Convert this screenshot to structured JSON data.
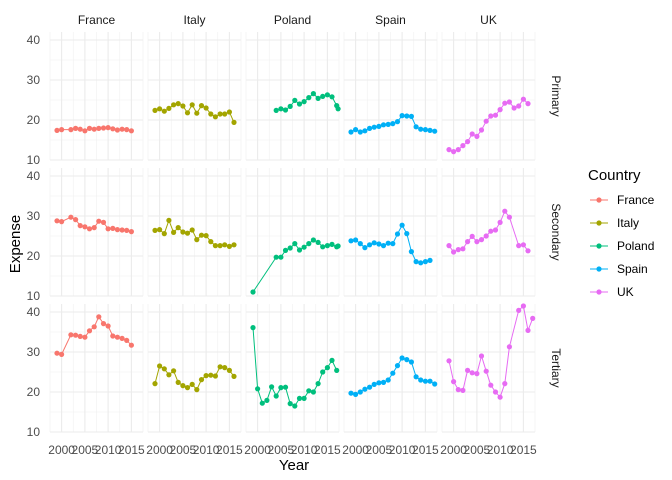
{
  "chart_data": {
    "type": "line",
    "facet": "grid",
    "xlabel": "Year",
    "ylabel": "Expense",
    "xlim": [
      1997.5,
      2017.5
    ],
    "ylim": [
      10,
      42
    ],
    "x_ticks": [
      2000,
      2005,
      2010,
      2015
    ],
    "x_tick_labels": [
      "2000",
      "2005",
      "2010",
      "2015"
    ],
    "y_ticks": [
      10,
      20,
      30,
      40
    ],
    "grid": true,
    "legend": {
      "title": "Country",
      "position": "right"
    },
    "columns": [
      "France",
      "Italy",
      "Poland",
      "Spain",
      "UK"
    ],
    "rows": [
      "Primary",
      "Secondary",
      "Tertiary"
    ],
    "colors": {
      "France": "#F8766D",
      "Italy": "#A3A500",
      "Poland": "#00BF7D",
      "Spain": "#00B0F6",
      "UK": "#E76BF3"
    },
    "series": [
      {
        "country": "France",
        "level": "Primary",
        "points": [
          [
            1999,
            17.4
          ],
          [
            2000,
            17.6
          ],
          [
            2002,
            17.6
          ],
          [
            2003,
            17.9
          ],
          [
            2004,
            17.7
          ],
          [
            2005,
            17.3
          ],
          [
            2006,
            17.9
          ],
          [
            2007,
            17.7
          ],
          [
            2008,
            17.9
          ],
          [
            2009,
            18.0
          ],
          [
            2010,
            18.1
          ],
          [
            2011,
            17.8
          ],
          [
            2012,
            17.5
          ],
          [
            2013,
            17.7
          ],
          [
            2014,
            17.6
          ],
          [
            2015,
            17.3
          ]
        ]
      },
      {
        "country": "Italy",
        "level": "Primary",
        "points": [
          [
            1999,
            22.4
          ],
          [
            2000,
            22.8
          ],
          [
            2001,
            22.2
          ],
          [
            2002,
            22.9
          ],
          [
            2003,
            23.8
          ],
          [
            2004,
            24.1
          ],
          [
            2005,
            23.5
          ],
          [
            2006,
            21.8
          ],
          [
            2007,
            23.8
          ],
          [
            2008,
            21.7
          ],
          [
            2009,
            23.6
          ],
          [
            2010,
            23.0
          ],
          [
            2011,
            21.5
          ],
          [
            2012,
            20.8
          ],
          [
            2013,
            21.5
          ],
          [
            2014,
            21.5
          ],
          [
            2015,
            22.0
          ],
          [
            2016,
            19.4
          ]
        ]
      },
      {
        "country": "Poland",
        "level": "Primary",
        "points": [
          [
            2004,
            22.4
          ],
          [
            2005,
            22.8
          ],
          [
            2006,
            22.5
          ],
          [
            2007,
            23.4
          ],
          [
            2008,
            24.9
          ],
          [
            2009,
            24.0
          ],
          [
            2010,
            24.6
          ],
          [
            2011,
            25.6
          ],
          [
            2012,
            26.6
          ],
          [
            2013,
            25.4
          ],
          [
            2014,
            25.9
          ],
          [
            2015,
            26.3
          ],
          [
            2016,
            25.8
          ],
          [
            2017,
            23.6
          ],
          [
            2017.3,
            22.8
          ]
        ]
      },
      {
        "country": "Spain",
        "level": "Primary",
        "points": [
          [
            1999,
            17.0
          ],
          [
            2000,
            17.6
          ],
          [
            2001,
            17.0
          ],
          [
            2002,
            17.3
          ],
          [
            2003,
            17.9
          ],
          [
            2004,
            18.2
          ],
          [
            2005,
            18.4
          ],
          [
            2006,
            18.8
          ],
          [
            2007,
            18.9
          ],
          [
            2008,
            19.1
          ],
          [
            2009,
            19.6
          ],
          [
            2010,
            21.1
          ],
          [
            2011,
            21.0
          ],
          [
            2012,
            20.9
          ],
          [
            2013,
            18.3
          ],
          [
            2014,
            17.7
          ],
          [
            2015,
            17.6
          ],
          [
            2016,
            17.4
          ],
          [
            2017,
            17.2
          ]
        ]
      },
      {
        "country": "UK",
        "level": "Primary",
        "points": [
          [
            1999,
            12.6
          ],
          [
            2000,
            12.1
          ],
          [
            2001,
            12.6
          ],
          [
            2002,
            13.6
          ],
          [
            2003,
            14.6
          ],
          [
            2004,
            16.5
          ],
          [
            2005,
            15.9
          ],
          [
            2006,
            17.5
          ],
          [
            2007,
            19.7
          ],
          [
            2008,
            21.0
          ],
          [
            2009,
            21.2
          ],
          [
            2010,
            22.6
          ],
          [
            2011,
            24.2
          ],
          [
            2012,
            24.5
          ],
          [
            2013,
            23.0
          ],
          [
            2014,
            23.5
          ],
          [
            2015,
            25.2
          ],
          [
            2016,
            24.1
          ]
        ]
      },
      {
        "country": "France",
        "level": "Secondary",
        "points": [
          [
            1999,
            28.8
          ],
          [
            2000,
            28.6
          ],
          [
            2002,
            29.7
          ],
          [
            2003,
            29.1
          ],
          [
            2004,
            27.6
          ],
          [
            2005,
            27.3
          ],
          [
            2006,
            26.8
          ],
          [
            2007,
            27.1
          ],
          [
            2008,
            28.7
          ],
          [
            2009,
            28.4
          ],
          [
            2010,
            26.8
          ],
          [
            2011,
            26.9
          ],
          [
            2012,
            26.6
          ],
          [
            2013,
            26.5
          ],
          [
            2014,
            26.4
          ],
          [
            2015,
            26.1
          ]
        ]
      },
      {
        "country": "Italy",
        "level": "Secondary",
        "points": [
          [
            1999,
            26.4
          ],
          [
            2000,
            26.6
          ],
          [
            2001,
            25.6
          ],
          [
            2002,
            28.9
          ],
          [
            2003,
            25.9
          ],
          [
            2004,
            27.1
          ],
          [
            2005,
            26.0
          ],
          [
            2006,
            25.7
          ],
          [
            2007,
            26.5
          ],
          [
            2008,
            24.1
          ],
          [
            2009,
            25.2
          ],
          [
            2010,
            25.1
          ],
          [
            2011,
            23.6
          ],
          [
            2012,
            22.6
          ],
          [
            2013,
            22.6
          ],
          [
            2014,
            22.8
          ],
          [
            2015,
            22.4
          ],
          [
            2016,
            22.8
          ]
        ]
      },
      {
        "country": "Poland",
        "level": "Secondary",
        "points": [
          [
            1999,
            11.0
          ],
          [
            2004,
            19.7
          ],
          [
            2005,
            19.7
          ],
          [
            2006,
            21.4
          ],
          [
            2007,
            22.0
          ],
          [
            2008,
            23.1
          ],
          [
            2009,
            21.5
          ],
          [
            2010,
            22.2
          ],
          [
            2011,
            23.1
          ],
          [
            2012,
            24.0
          ],
          [
            2013,
            23.4
          ],
          [
            2014,
            22.3
          ],
          [
            2015,
            22.6
          ],
          [
            2016,
            22.9
          ],
          [
            2017,
            22.3
          ],
          [
            2017.3,
            22.5
          ]
        ]
      },
      {
        "country": "Spain",
        "level": "Secondary",
        "points": [
          [
            1999,
            23.8
          ],
          [
            2000,
            24.0
          ],
          [
            2001,
            23.1
          ],
          [
            2002,
            22.1
          ],
          [
            2003,
            22.8
          ],
          [
            2004,
            23.3
          ],
          [
            2005,
            23.0
          ],
          [
            2006,
            22.6
          ],
          [
            2007,
            23.2
          ],
          [
            2008,
            23.1
          ],
          [
            2009,
            25.5
          ],
          [
            2010,
            27.7
          ],
          [
            2011,
            25.6
          ],
          [
            2012,
            21.1
          ],
          [
            2013,
            18.6
          ],
          [
            2014,
            18.3
          ],
          [
            2015,
            18.6
          ],
          [
            2016,
            18.9
          ]
        ]
      },
      {
        "country": "UK",
        "level": "Secondary",
        "points": [
          [
            1999,
            22.6
          ],
          [
            2000,
            21.0
          ],
          [
            2001,
            21.6
          ],
          [
            2002,
            21.8
          ],
          [
            2003,
            23.6
          ],
          [
            2004,
            24.9
          ],
          [
            2005,
            23.6
          ],
          [
            2006,
            24.1
          ],
          [
            2007,
            25.0
          ],
          [
            2008,
            26.2
          ],
          [
            2009,
            26.5
          ],
          [
            2010,
            28.4
          ],
          [
            2011,
            31.2
          ],
          [
            2012,
            29.7
          ],
          [
            2014,
            22.6
          ],
          [
            2015,
            22.8
          ],
          [
            2016,
            21.3
          ]
        ]
      },
      {
        "country": "France",
        "level": "Tertiary",
        "points": [
          [
            1999,
            29.7
          ],
          [
            2000,
            29.4
          ],
          [
            2002,
            34.3
          ],
          [
            2003,
            34.2
          ],
          [
            2004,
            33.9
          ],
          [
            2005,
            33.7
          ],
          [
            2006,
            35.3
          ],
          [
            2007,
            36.3
          ],
          [
            2008,
            38.8
          ],
          [
            2009,
            37.1
          ],
          [
            2010,
            36.5
          ],
          [
            2011,
            34.0
          ],
          [
            2012,
            33.7
          ],
          [
            2013,
            33.4
          ],
          [
            2014,
            32.9
          ],
          [
            2015,
            31.7
          ]
        ]
      },
      {
        "country": "Italy",
        "level": "Tertiary",
        "points": [
          [
            1999,
            22.1
          ],
          [
            2000,
            26.5
          ],
          [
            2001,
            25.8
          ],
          [
            2002,
            24.3
          ],
          [
            2003,
            25.3
          ],
          [
            2004,
            22.4
          ],
          [
            2005,
            21.6
          ],
          [
            2006,
            21.1
          ],
          [
            2007,
            21.9
          ],
          [
            2008,
            20.6
          ],
          [
            2009,
            23.1
          ],
          [
            2010,
            24.1
          ],
          [
            2011,
            24.2
          ],
          [
            2012,
            24.0
          ],
          [
            2013,
            26.3
          ],
          [
            2014,
            26.1
          ],
          [
            2015,
            25.4
          ],
          [
            2016,
            23.9
          ]
        ]
      },
      {
        "country": "Poland",
        "level": "Tertiary",
        "points": [
          [
            1999,
            36.1
          ],
          [
            2000,
            20.8
          ],
          [
            2001,
            17.2
          ],
          [
            2002,
            17.9
          ],
          [
            2003,
            21.3
          ],
          [
            2004,
            19.0
          ],
          [
            2005,
            21.1
          ],
          [
            2006,
            21.2
          ],
          [
            2007,
            17.1
          ],
          [
            2008,
            16.5
          ],
          [
            2009,
            18.4
          ],
          [
            2010,
            18.4
          ],
          [
            2011,
            20.3
          ],
          [
            2012,
            20.0
          ],
          [
            2013,
            22.1
          ],
          [
            2014,
            25.0
          ],
          [
            2015,
            26.1
          ],
          [
            2016,
            27.9
          ],
          [
            2017,
            25.4
          ]
        ]
      },
      {
        "country": "Spain",
        "level": "Tertiary",
        "points": [
          [
            1999,
            19.7
          ],
          [
            2000,
            19.4
          ],
          [
            2001,
            20.0
          ],
          [
            2002,
            20.7
          ],
          [
            2003,
            21.2
          ],
          [
            2004,
            21.9
          ],
          [
            2005,
            22.3
          ],
          [
            2006,
            22.4
          ],
          [
            2007,
            23.0
          ],
          [
            2008,
            24.7
          ],
          [
            2009,
            26.6
          ],
          [
            2010,
            28.5
          ],
          [
            2011,
            28.1
          ],
          [
            2012,
            27.5
          ],
          [
            2013,
            23.8
          ],
          [
            2014,
            23.0
          ],
          [
            2015,
            22.7
          ],
          [
            2016,
            22.7
          ],
          [
            2017,
            22.0
          ]
        ]
      },
      {
        "country": "UK",
        "level": "Tertiary",
        "points": [
          [
            1999,
            27.8
          ],
          [
            2000,
            22.6
          ],
          [
            2001,
            20.6
          ],
          [
            2002,
            20.4
          ],
          [
            2003,
            25.4
          ],
          [
            2004,
            24.8
          ],
          [
            2005,
            24.6
          ],
          [
            2006,
            29.0
          ],
          [
            2007,
            25.2
          ],
          [
            2008,
            21.7
          ],
          [
            2009,
            20.0
          ],
          [
            2010,
            18.7
          ],
          [
            2011,
            22.1
          ],
          [
            2012,
            31.3
          ],
          [
            2014,
            40.4
          ],
          [
            2015,
            41.5
          ],
          [
            2016,
            35.4
          ],
          [
            2017,
            38.4
          ]
        ]
      }
    ]
  }
}
